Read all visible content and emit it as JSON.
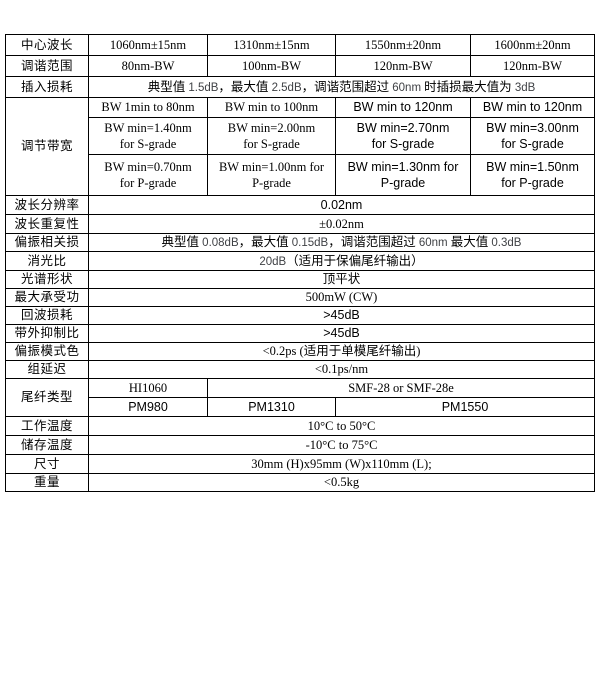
{
  "page": {
    "background_color": "#ffffff",
    "border_color": "#000000",
    "text_color": "#000000",
    "numeric_text_color": "#3f4145"
  },
  "table": {
    "rows": [
      {
        "label": "中心波长",
        "cells": [
          {
            "t": "1060nm±15nm"
          },
          {
            "t": "1310nm±15nm"
          },
          {
            "t": "1550nm±20nm"
          },
          {
            "t": "1600nm±20nm"
          }
        ]
      },
      {
        "label": "调谐范围",
        "cells": [
          {
            "t": "80nm-BW"
          },
          {
            "t": "100nm-BW"
          },
          {
            "t": "120nm-BW"
          },
          {
            "t": "120nm-BW"
          }
        ]
      },
      {
        "label": "插入损耗",
        "cells": [
          {
            "c": 4,
            "p": [
              [
                "典型值 ",
                "cn"
              ],
              [
                "1.5dB",
                "num"
              ],
              [
                "，最大值 ",
                "cn"
              ],
              [
                "2.5dB",
                "num"
              ],
              [
                "，调谐范围超过 ",
                "cn"
              ],
              [
                "60nm",
                "num"
              ],
              [
                " 时插损最大值为 ",
                "cn"
              ],
              [
                "3dB",
                "num"
              ]
            ]
          }
        ]
      },
      {
        "label": "调节带宽",
        "label_rowspan": 3,
        "cells": [
          {
            "t": "BW 1min to 80nm"
          },
          {
            "t": "BW min to 100nm"
          },
          {
            "t": "BW min to 120nm",
            "f": "num"
          },
          {
            "t": "BW min to 120nm",
            "f": "num"
          }
        ]
      },
      {
        "cells": [
          {
            "t": "BW min=1.40nm\nfor S-grade"
          },
          {
            "t": "BW min=2.00nm\nfor S-grade"
          },
          {
            "t": "BW min=2.70nm\nfor S-grade",
            "f": "num"
          },
          {
            "t": "BW min=3.00nm\nfor S-grade",
            "f": "num"
          }
        ]
      },
      {
        "cells": [
          {
            "t": "BW min=0.70nm\nfor P-grade"
          },
          {
            "t": "BW min=1.00nm for\nP-grade"
          },
          {
            "t": "BW min=1.30nm for\nP-grade",
            "f": "num"
          },
          {
            "t": "BW min=1.50nm\nfor P-grade",
            "f": "num"
          }
        ]
      },
      {
        "label": "波长分辨率",
        "cells": [
          {
            "t": "0.02nm",
            "c": 4,
            "f": "num"
          }
        ]
      },
      {
        "label": "波长重复性",
        "cells": [
          {
            "t": "±0.02nm",
            "c": 4
          }
        ]
      },
      {
        "label": "偏振相关损",
        "cells": [
          {
            "c": 4,
            "p": [
              [
                "典型值 ",
                "cn"
              ],
              [
                "0.08dB",
                "num"
              ],
              [
                "，最大值 ",
                "cn"
              ],
              [
                "0.15dB",
                "num"
              ],
              [
                "，调谐范围超过 ",
                "cn"
              ],
              [
                "60nm",
                "num"
              ],
              [
                " 最大值 ",
                "cn"
              ],
              [
                "0.3dB",
                "num"
              ]
            ]
          }
        ]
      },
      {
        "label": "消光比",
        "cells": [
          {
            "c": 4,
            "p": [
              [
                "20dB",
                "num"
              ],
              [
                "（适用于保偏尾纤输出）",
                "cn"
              ]
            ]
          }
        ]
      },
      {
        "label": "光谱形状",
        "cells": [
          {
            "t": "顶平状",
            "c": 4
          }
        ]
      },
      {
        "label": "最大承受功",
        "cells": [
          {
            "t": "500mW (CW)",
            "c": 4
          }
        ]
      },
      {
        "label": "回波损耗",
        "cells": [
          {
            "t": ">45dB",
            "c": 4,
            "f": "num"
          }
        ]
      },
      {
        "label": "带外抑制比",
        "cells": [
          {
            "t": ">45dB",
            "c": 4,
            "f": "num"
          }
        ]
      },
      {
        "label": "偏振模式色",
        "cells": [
          {
            "t": "<0.2ps (适用于单模尾纤输出)",
            "c": 4
          }
        ]
      },
      {
        "label": "组延迟",
        "cells": [
          {
            "t": "<0.1ps/nm",
            "c": 4
          }
        ]
      },
      {
        "label": "尾纤类型",
        "label_rowspan": 2,
        "cells": [
          {
            "t": "HI1060"
          },
          {
            "t": "SMF-28 or SMF-28e",
            "c": 3
          }
        ]
      },
      {
        "cells": [
          {
            "t": "PM980",
            "f": "num"
          },
          {
            "t": "PM1310",
            "f": "num"
          },
          {
            "t": "PM1550",
            "c": 2,
            "f": "num"
          }
        ]
      },
      {
        "label": "工作温度",
        "cells": [
          {
            "t": "10°C to 50°C",
            "c": 4
          }
        ]
      },
      {
        "label": "储存温度",
        "cells": [
          {
            "t": "-10°C to 75°C",
            "c": 4
          }
        ]
      },
      {
        "label": "尺寸",
        "cells": [
          {
            "t": "30mm (H)x95mm (W)x110mm (L);",
            "c": 4
          }
        ]
      },
      {
        "label": "重量",
        "cells": [
          {
            "t": "<0.5kg",
            "c": 4
          }
        ]
      }
    ]
  }
}
